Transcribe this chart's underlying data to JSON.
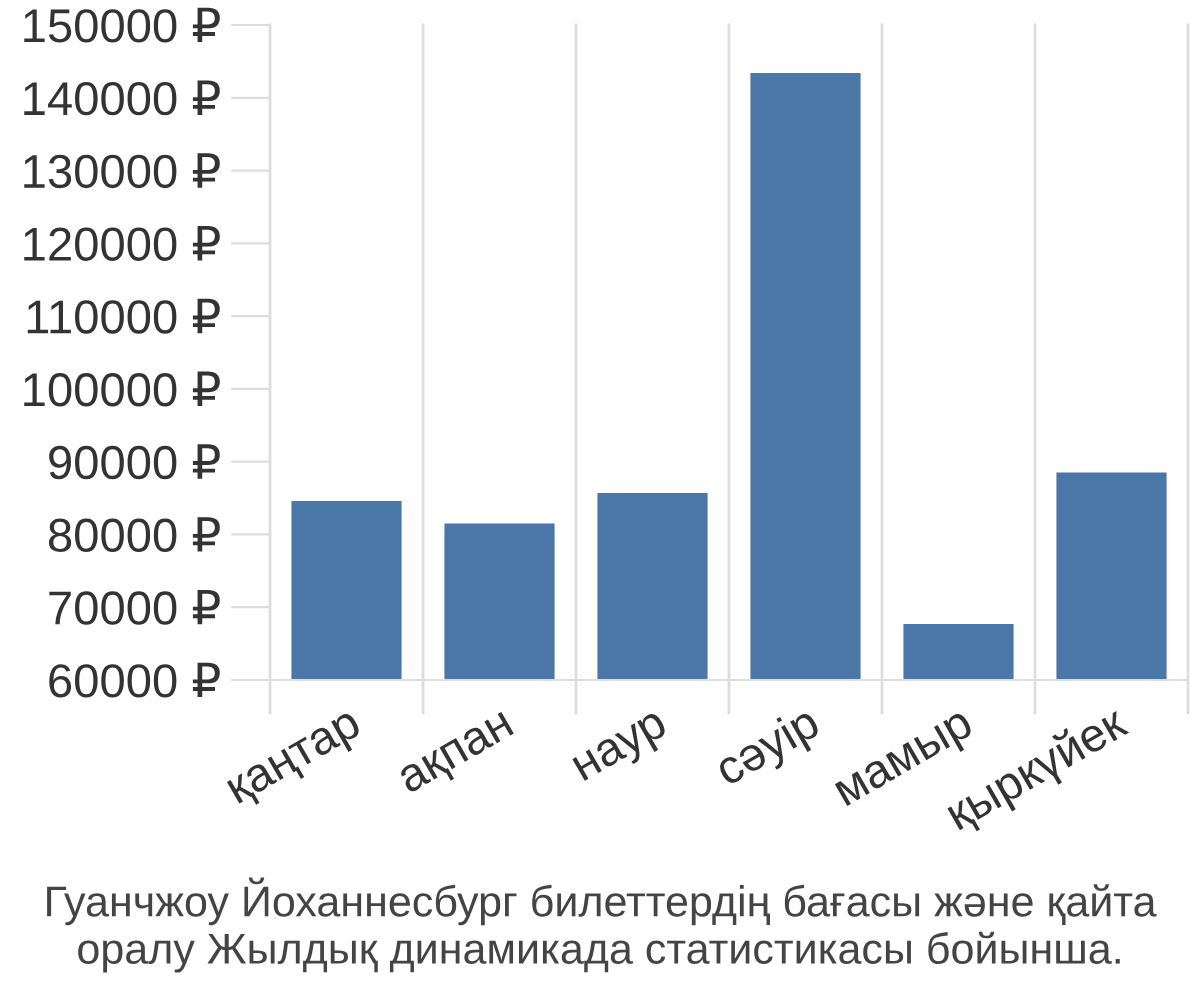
{
  "chart_data": {
    "type": "bar",
    "categories": [
      "қаңтар",
      "ақпан",
      "наур",
      "сәуір",
      "мамыр",
      "қыркүйек"
    ],
    "values": [
      84600,
      81500,
      85700,
      143400,
      67700,
      88500
    ],
    "color": "#4a76a8",
    "ylim": [
      60000,
      150000
    ],
    "yticks": [
      {
        "value": 60000,
        "label": "60000 ₽"
      },
      {
        "value": 70000,
        "label": "70000 ₽"
      },
      {
        "value": 80000,
        "label": "80000 ₽"
      },
      {
        "value": 90000,
        "label": "90000 ₽"
      },
      {
        "value": 100000,
        "label": "100000 ₽"
      },
      {
        "value": 110000,
        "label": "110000 ₽"
      },
      {
        "value": 120000,
        "label": "120000 ₽"
      },
      {
        "value": 130000,
        "label": "130000 ₽"
      },
      {
        "value": 140000,
        "label": "140000 ₽"
      },
      {
        "value": 150000,
        "label": "150000 ₽"
      }
    ],
    "grid": "x",
    "annotations": [
      "Гуанчжоу Йоханнесбург билеттердің бағасы және қайта оралу Жылдық динамикада статистикасы бойынша."
    ]
  }
}
